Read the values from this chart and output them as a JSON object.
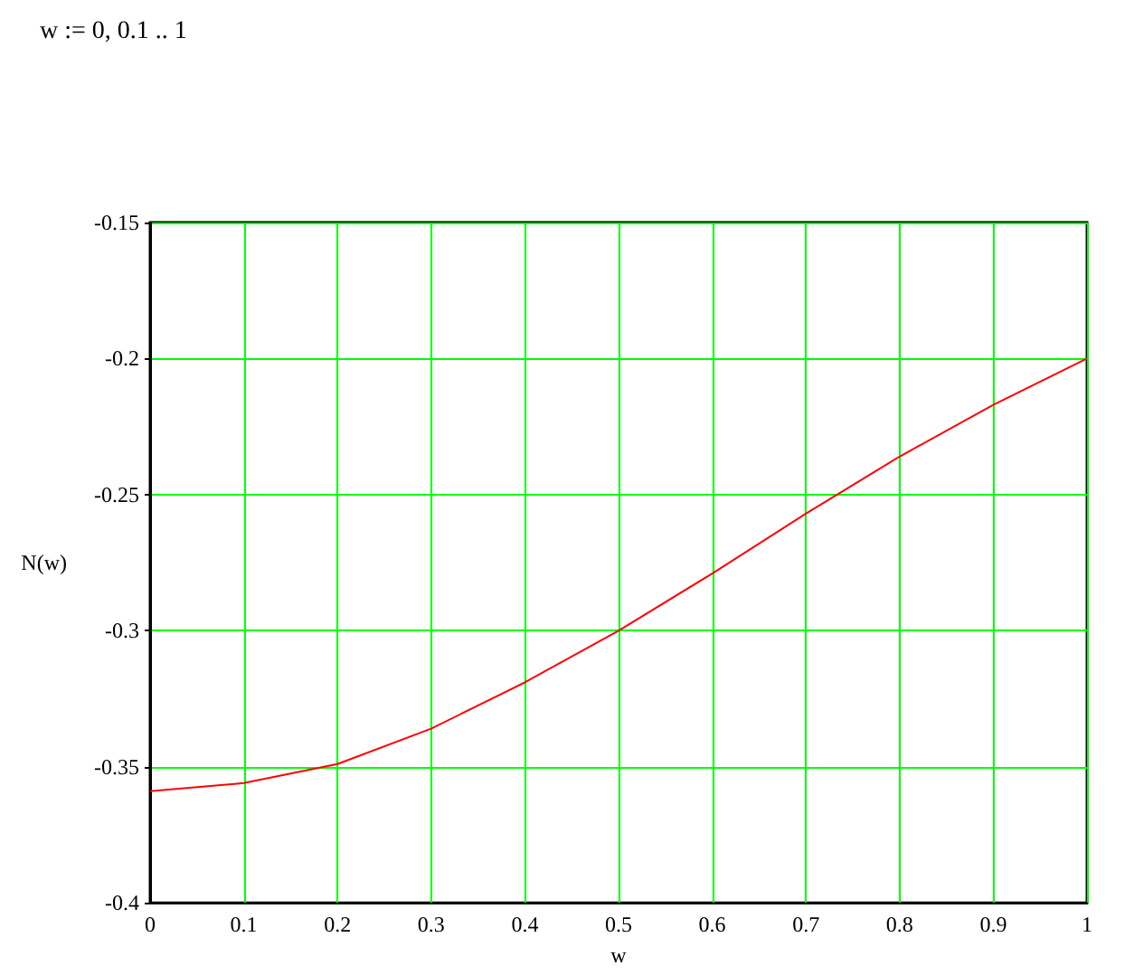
{
  "chart_data": {
    "type": "line",
    "xlabel": "w",
    "ylabel": "N(w)",
    "annotations": [
      "w := 0, 0.1 .. 1"
    ],
    "x": [
      0,
      0.1,
      0.2,
      0.3,
      0.4,
      0.5,
      0.6,
      0.7,
      0.8,
      0.9,
      1
    ],
    "series": [
      {
        "color": "#ff0000",
        "values": [
          -0.359,
          -0.356,
          -0.349,
          -0.336,
          -0.319,
          -0.3,
          -0.279,
          -0.257,
          -0.236,
          -0.217,
          -0.2
        ]
      }
    ],
    "xlim": [
      0,
      1
    ],
    "xticks": [
      0,
      0.1,
      0.2,
      0.3,
      0.4,
      0.5,
      0.6,
      0.7,
      0.8,
      0.9,
      1
    ],
    "ylim": [
      -0.4,
      -0.15
    ],
    "yticks": [
      -0.4,
      -0.35,
      -0.3,
      -0.25,
      -0.2,
      -0.15
    ],
    "grid": true,
    "marker": "none",
    "line_style": "solid"
  }
}
